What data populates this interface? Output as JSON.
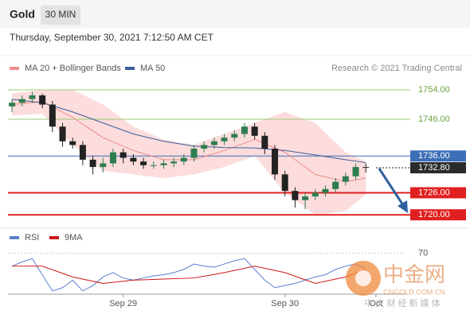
{
  "chart_data": {
    "type": "candlestick",
    "title": "Gold",
    "timeframe": "30 MIN",
    "subtitle": "Thursday, September 30, 2021 7:12:50 AM CET",
    "source": "Research © 2021 Trading Central",
    "xlim": [
      -17.1,
      42
    ],
    "ylim": [
      1716.8,
      1757.9
    ],
    "xticks": [
      {
        "value": 0,
        "label": "Sep 29"
      },
      {
        "value": 24,
        "label": "Sep 30"
      },
      {
        "value": 37.5,
        "label": "Oct"
      }
    ],
    "up_color": "#2e7d4f",
    "down_color": "#222222",
    "candles": {
      "x": [
        -16.5,
        -15,
        -13.5,
        -12,
        -10.5,
        -9,
        -7.5,
        -6,
        -4.5,
        -3,
        -1.5,
        0,
        1.5,
        3,
        4.5,
        6,
        7.5,
        9,
        10.5,
        12,
        13.5,
        15,
        16.5,
        18,
        19.5,
        21,
        22.5,
        24,
        25.5,
        27,
        28.5,
        30,
        31.5,
        33,
        34.5,
        36
      ],
      "open": [
        1749.5,
        1750.5,
        1751.5,
        1752.5,
        1750,
        1744,
        1740,
        1739,
        1735,
        1733,
        1734,
        1737,
        1735.5,
        1734.5,
        1733.5,
        1733.5,
        1734,
        1734.5,
        1735.5,
        1738,
        1739,
        1740,
        1741,
        1742,
        1744,
        1741.5,
        1738,
        1731,
        1726.5,
        1724,
        1725,
        1726,
        1727,
        1729,
        1730.5,
        1733
      ],
      "high": [
        1751.5,
        1752.5,
        1753.5,
        1753,
        1751,
        1745,
        1741,
        1740,
        1736,
        1735.5,
        1738,
        1738,
        1736.5,
        1735.5,
        1734.5,
        1735,
        1735.5,
        1736.5,
        1739,
        1740,
        1741,
        1742,
        1743,
        1745,
        1745,
        1742.5,
        1739,
        1732,
        1727.5,
        1726,
        1727,
        1728,
        1730,
        1731.5,
        1734,
        1734
      ],
      "low": [
        1748,
        1749.5,
        1750.5,
        1749,
        1742.5,
        1738.5,
        1738,
        1733.5,
        1731,
        1731.5,
        1733,
        1734,
        1733.5,
        1732.5,
        1732.5,
        1732.5,
        1733,
        1733.5,
        1734.5,
        1737,
        1738,
        1739,
        1740,
        1741,
        1740.5,
        1736.5,
        1729.5,
        1725,
        1722,
        1721.5,
        1724,
        1725,
        1726,
        1728,
        1729.5,
        1731.5
      ],
      "close": [
        1750.5,
        1751.5,
        1752.5,
        1750,
        1744,
        1740,
        1739,
        1735,
        1733,
        1734,
        1737,
        1735.5,
        1734.5,
        1733.5,
        1733.5,
        1734,
        1734.5,
        1735.5,
        1738,
        1739,
        1740,
        1741,
        1742,
        1744,
        1741.5,
        1738,
        1731,
        1726.5,
        1724,
        1725,
        1726,
        1727,
        1729,
        1730.5,
        1733,
        1732.8
      ]
    },
    "indicators": [
      {
        "name": "MA 20 + Bollinger Bands",
        "color": "#f08c8c",
        "band_color": "#fbd3d3",
        "x": [
          -16.5,
          -12,
          -7.5,
          -3,
          1.5,
          6,
          10.5,
          15,
          19.5,
          24,
          28.5,
          33,
          36
        ],
        "values": [
          1750,
          1750.8,
          1746.5,
          1741,
          1737.5,
          1735,
          1735,
          1737.5,
          1740.5,
          1737,
          1731,
          1729,
          1730
        ],
        "upper": [
          1753,
          1754,
          1754,
          1750,
          1744,
          1740.5,
          1739,
          1742,
          1745,
          1748,
          1745,
          1737,
          1734.5
        ],
        "lower": [
          1747,
          1747.5,
          1739,
          1732,
          1731,
          1730,
          1731,
          1733,
          1736,
          1726,
          1720,
          1721,
          1725.5
        ]
      },
      {
        "name": "MA 50",
        "color": "#3b5f9a",
        "x": [
          -16.5,
          -12,
          -7.5,
          -3,
          1.5,
          6,
          10.5,
          15,
          19.5,
          24,
          28.5,
          33,
          36
        ],
        "values": [
          1751.4,
          1750.5,
          1748,
          1745,
          1742,
          1740,
          1738.7,
          1738.3,
          1738.2,
          1737.5,
          1736.3,
          1735,
          1734.2
        ]
      }
    ],
    "levels": [
      {
        "value": 1754,
        "label": "1754.00",
        "color": "#9ccc74",
        "style": "plain"
      },
      {
        "value": 1746,
        "label": "1746.00",
        "color": "#9ccc74",
        "style": "plain"
      },
      {
        "value": 1736,
        "label": "1736.00",
        "color": "#3d6fb6",
        "style": "boxed"
      },
      {
        "value": 1732.8,
        "label": "1732.80",
        "color": "#2b2b2b",
        "style": "current"
      },
      {
        "value": 1726,
        "label": "1726.00",
        "color": "#e02020",
        "style": "boxed"
      },
      {
        "value": 1720,
        "label": "1720.00",
        "color": "#e02020",
        "style": "boxed"
      }
    ],
    "rsi_panel": {
      "ylim": [
        32,
        80
      ],
      "yticks": [
        70
      ],
      "series": [
        {
          "name": "RSI",
          "color": "#5b7fd0",
          "x": [
            -16.5,
            -15,
            -13.5,
            -12,
            -10.5,
            -9,
            -7.5,
            -6,
            -4.5,
            -3,
            -1.5,
            0,
            1.5,
            3,
            4.5,
            6,
            7.5,
            9,
            10.5,
            12,
            13.5,
            15,
            16.5,
            18,
            19.5,
            21,
            22.5,
            24,
            25.5,
            27,
            28.5,
            30,
            31.5,
            33,
            34.5,
            36
          ],
          "values": [
            58,
            62,
            65,
            50,
            35,
            38,
            45,
            35,
            40,
            48,
            52,
            47,
            45,
            47,
            49,
            50,
            52,
            55,
            60,
            58,
            57,
            60,
            63,
            65,
            55,
            45,
            38,
            40,
            42,
            45,
            48,
            50,
            55,
            58,
            60,
            56
          ]
        },
        {
          "name": "9MA",
          "color": "#d01818",
          "x": [
            -16.5,
            -12,
            -7.5,
            -3,
            1.5,
            6,
            10.5,
            15,
            19.5,
            24,
            28.5,
            33,
            36
          ],
          "values": [
            58,
            58,
            48,
            42,
            45,
            46,
            47,
            52,
            58,
            52,
            42,
            48,
            55
          ]
        }
      ]
    },
    "watermark": {
      "name": "中金网",
      "url": "CNGOLD.COM.CN",
      "tagline": "中 文 财 经 新 媒 体"
    }
  }
}
